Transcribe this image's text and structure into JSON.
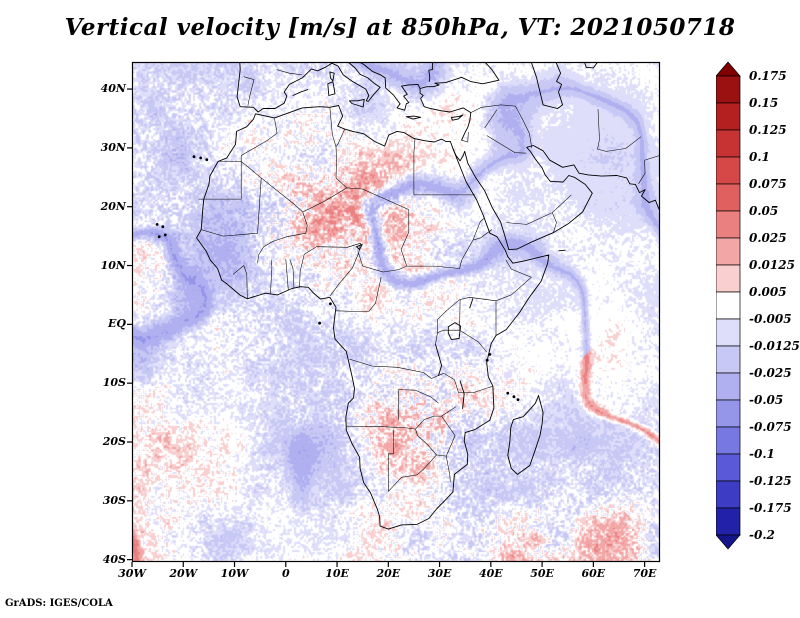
{
  "header": {
    "title": "Vertical velocity [m/s] at 850hPa, VT: 2021050718"
  },
  "footer": {
    "credit": "GrADS: IGES/COLA"
  },
  "chart_data": {
    "type": "heatmap",
    "title": "Vertical velocity [m/s] at 850hPa, VT: 2021050718",
    "variable": "Vertical velocity",
    "units": "m/s",
    "pressure_level": "850hPa",
    "valid_time": "2021050718",
    "map_region": "Africa, Mediterranean, Middle East and surrounding oceans",
    "grid": false,
    "legend_position": "right",
    "lon_range": [
      -30,
      73
    ],
    "lat_range": [
      -40.4,
      44.6
    ],
    "x_ticks": {
      "labels": [
        "30W",
        "20W",
        "10W",
        "0",
        "10E",
        "20E",
        "30E",
        "40E",
        "50E",
        "60E",
        "70E"
      ],
      "lons": [
        -30,
        -20,
        -10,
        0,
        10,
        20,
        30,
        40,
        50,
        60,
        70
      ]
    },
    "y_ticks": {
      "labels": [
        "40N",
        "30N",
        "20N",
        "10N",
        "EQ",
        "10S",
        "20S",
        "30S",
        "40S"
      ],
      "lats": [
        40,
        30,
        20,
        10,
        0,
        -10,
        -20,
        -30,
        -40
      ]
    },
    "colorbar": {
      "orientation": "vertical",
      "tick_labels": [
        "0.175",
        "0.15",
        "0.125",
        "0.1",
        "0.075",
        "0.05",
        "0.025",
        "0.0125",
        "0.005",
        "-0.005",
        "-0.0125",
        "-0.025",
        "-0.05",
        "-0.075",
        "-0.1",
        "-0.125",
        "-0.175",
        "-0.2"
      ],
      "levels": [
        0.175,
        0.15,
        0.125,
        0.1,
        0.075,
        0.05,
        0.025,
        0.0125,
        0.005,
        -0.005,
        -0.0125,
        -0.025,
        -0.05,
        -0.075,
        -0.1,
        -0.125,
        -0.175,
        -0.2
      ],
      "top_arrow_color": "#7e0000",
      "bottom_arrow_color": "#15158a",
      "segment_colors": [
        "#9b1010",
        "#b42020",
        "#c73333",
        "#d64848",
        "#e06060",
        "#ea8080",
        "#f2a6a6",
        "#f9cfcf",
        "#ffffff",
        "#dedefa",
        "#c8c8f5",
        "#b0b0f0",
        "#9595ea",
        "#7878e3",
        "#5a5ad8",
        "#3c3cc4",
        "#2222a8"
      ]
    },
    "field_character": "fine-scale speckled positive (red) and negative (blue) vertical-velocity anomalies; strongest variability over the Sahara/Sahel belt and southern Africa, mostly weak light-blue/pale values over the oceans with thin red and blue filament streaks"
  }
}
